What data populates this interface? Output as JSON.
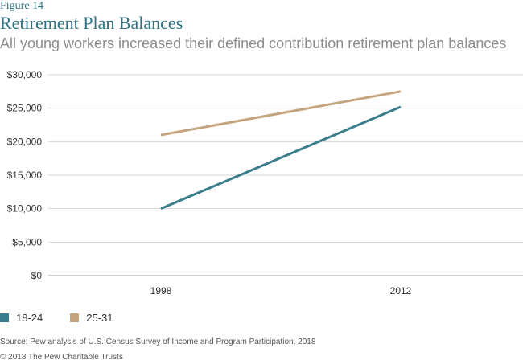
{
  "figure_label": "Figure 14",
  "chart_data": {
    "type": "line",
    "title": "Retirement Plan Balances",
    "subtitle": "All young workers increased their defined contribution retirement plan balances",
    "x": [
      "1998",
      "2012"
    ],
    "yticks": [
      "$30,000",
      "$25,000",
      "$20,000",
      "$15,000",
      "$10,000",
      "$5,000",
      "$0"
    ],
    "ylim": [
      0,
      30000
    ],
    "grid": true,
    "legend_position": "bottom-left",
    "series": [
      {
        "name": "18-24",
        "values": [
          10000,
          25200
        ],
        "color": "#3a7d8c"
      },
      {
        "name": "25-31",
        "values": [
          21000,
          27500
        ],
        "color": "#c4a57f"
      }
    ]
  },
  "source": "Source: Pew analysis of U.S. Census Survey of Income and Program Participation, 2018",
  "copyright": "© 2018 The Pew Charitable Trusts"
}
